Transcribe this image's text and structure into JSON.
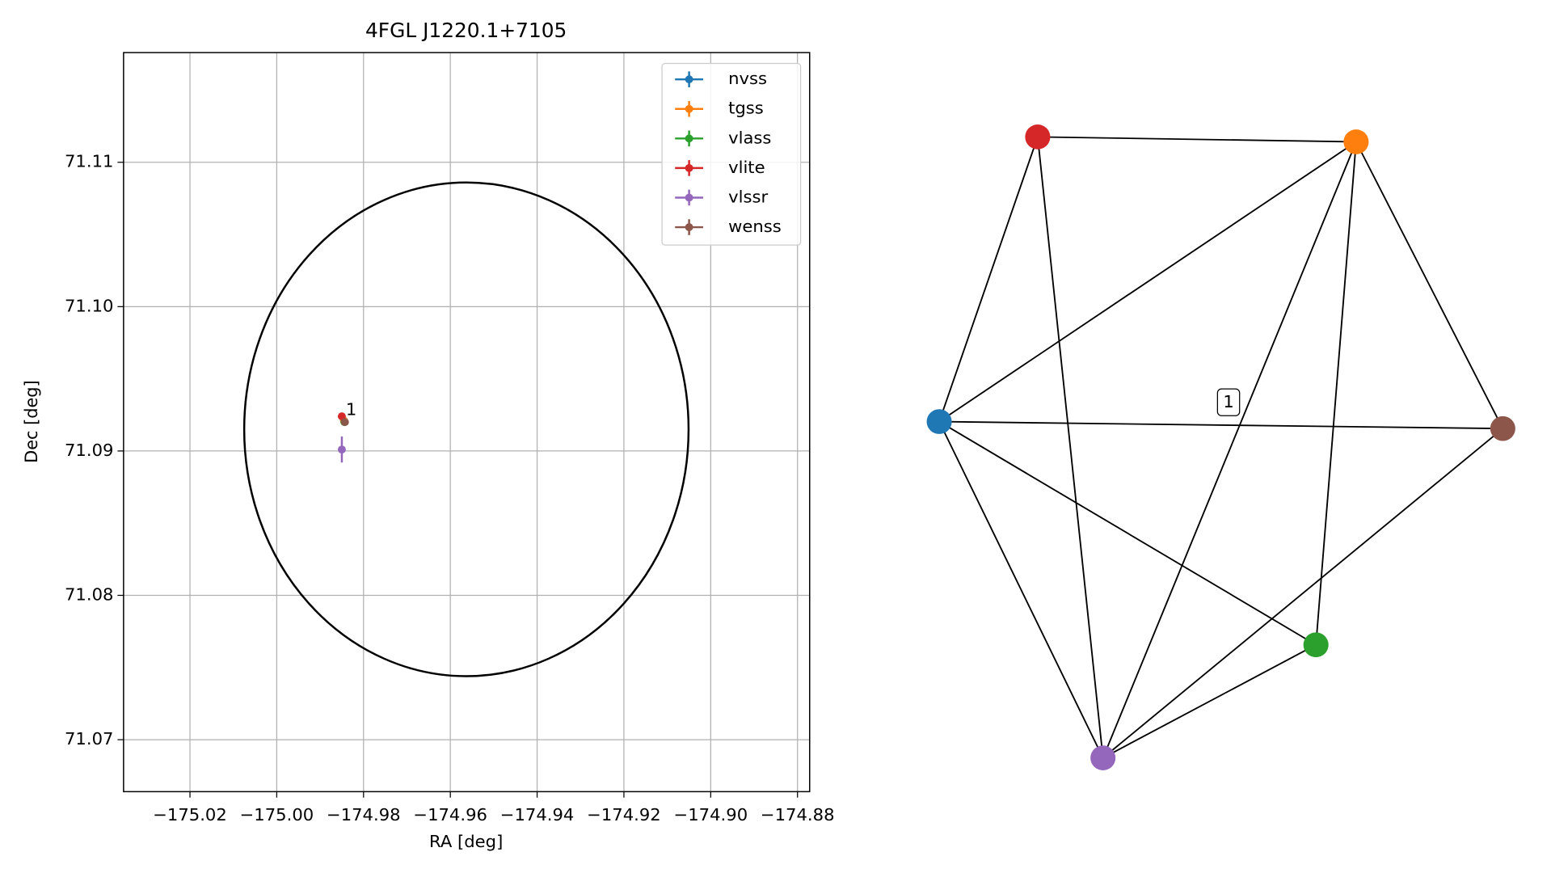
{
  "chart_data": [
    {
      "type": "scatter",
      "title": "4FGL J1220.1+7105",
      "x_label": "RA [deg]",
      "y_label": "Dec [deg]",
      "xlim": [
        -175.0353,
        -174.8772
      ],
      "ylim": [
        71.0664,
        71.1176
      ],
      "xticks": [
        {
          "value": -175.02,
          "label": "−175.02"
        },
        {
          "value": -175.0,
          "label": "−175.00"
        },
        {
          "value": -174.98,
          "label": "−174.98"
        },
        {
          "value": -174.96,
          "label": "−174.96"
        },
        {
          "value": -174.94,
          "label": "−174.94"
        },
        {
          "value": -174.92,
          "label": "−174.92"
        },
        {
          "value": -174.9,
          "label": "−174.90"
        },
        {
          "value": -174.88,
          "label": "−174.88"
        }
      ],
      "yticks": [
        71.07,
        71.08,
        71.09,
        {
          "value": 71.1,
          "label": "71.10"
        },
        71.11
      ],
      "grid": true,
      "legend": "upper right",
      "series": [
        {
          "name": "nvss",
          "color": "#1f77b4",
          "x": [
            -174.9845
          ],
          "values": [
            71.0921
          ],
          "yerr": [
            0.0002
          ]
        },
        {
          "name": "tgss",
          "color": "#ff7f0e",
          "x": [
            -174.9845
          ],
          "values": [
            71.0921
          ],
          "yerr": [
            0.0002
          ]
        },
        {
          "name": "vlass",
          "color": "#2ca02c",
          "x": [
            -174.9844
          ],
          "values": [
            71.092
          ],
          "yerr": [
            0.0001
          ]
        },
        {
          "name": "vlite",
          "color": "#d62728",
          "x": [
            -174.985
          ],
          "values": [
            71.0924
          ],
          "yerr": [
            0.0002
          ]
        },
        {
          "name": "vlssr",
          "color": "#9467bd",
          "x": [
            -174.985
          ],
          "values": [
            71.0901
          ],
          "yerr": [
            0.0009
          ]
        },
        {
          "name": "wenss",
          "color": "#8c564b",
          "x": [
            -174.9843
          ],
          "values": [
            71.092
          ],
          "yerr": [
            0.0002
          ]
        }
      ],
      "annotation": "1",
      "ellipse": {
        "center_x": -174.9563,
        "center_y": 71.0915,
        "radius_x": 0.0512,
        "radius_y": 0.0171,
        "color": "#000000"
      }
    },
    {
      "type": "network",
      "node_colors": [
        "#1f77b4",
        "#ff7f0e",
        "#2ca02c",
        "#d62728",
        "#9467bd",
        "#8c564b"
      ],
      "edges": [
        [
          3,
          1
        ],
        [
          3,
          0
        ],
        [
          3,
          4
        ],
        [
          1,
          0
        ],
        [
          1,
          4
        ],
        [
          1,
          2
        ],
        [
          1,
          5
        ],
        [
          0,
          5
        ],
        [
          0,
          4
        ],
        [
          0,
          2
        ],
        [
          4,
          2
        ],
        [
          4,
          5
        ]
      ],
      "edge_label": "1"
    }
  ]
}
